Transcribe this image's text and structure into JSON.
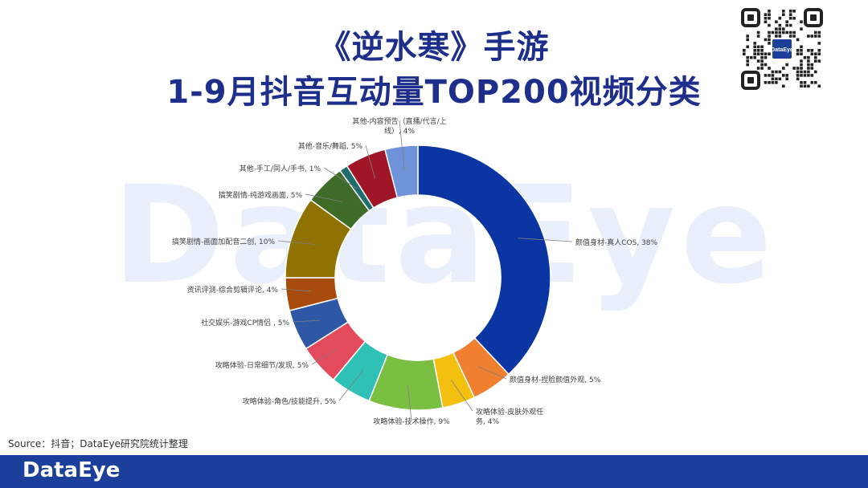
{
  "header": {
    "title_line1": "《逆水寒》手游",
    "title_line2": "1-9月抖音互动量TOP200视频分类"
  },
  "qr_code": {
    "label": "DataEye"
  },
  "watermark": "DataEye",
  "source": "Source：抖音；DataEye研究院统计整理",
  "footer": {
    "logo": "DataEye",
    "bar_color": "#1b3f9b"
  },
  "chart_data": {
    "type": "pie",
    "variant": "donut",
    "slices": [
      {
        "category": "颜值身材-真人COS",
        "value": 38,
        "label": "颜值身材-真人COS, 38%",
        "color": "#0a35a3"
      },
      {
        "category": "颜值身材-捏脸颜值外观",
        "value": 5,
        "label": "颜值身材-捏脸颜值外观, 5%",
        "color": "#f07f2f"
      },
      {
        "category": "攻略体验-皮肤外观任务",
        "value": 4,
        "label": "攻略体验-皮肤外观任|务, 4%",
        "color": "#f3c00f"
      },
      {
        "category": "攻略体验-技术操作",
        "value": 9,
        "label": "攻略体验-技术操作, 9%",
        "color": "#7bbf42"
      },
      {
        "category": "攻略体验-角色/技能提升",
        "value": 5,
        "label": "攻略体验-角色/技能提升, 5%",
        "color": "#2fc1b5"
      },
      {
        "category": "攻略体验-日常细节/发现",
        "value": 5,
        "label": "攻略体验-日常细节/发现, 5%",
        "color": "#e34b5d"
      },
      {
        "category": "社交娱乐-游戏CP情侣",
        "value": 5,
        "label": "社交娱乐-游戏CP情侣    , 5%",
        "color": "#2e57a6"
      },
      {
        "category": "资讯评测-综合剪辑评论",
        "value": 4,
        "label": "资讯评测-综合剪辑评论, 4%",
        "color": "#a84c0e"
      },
      {
        "category": "搞笑剧情-画面加配音二创",
        "value": 10,
        "label": "搞笑剧情-画面加配音二创, 10%",
        "color": "#8f7200"
      },
      {
        "category": "搞笑剧情-纯游戏画面",
        "value": 5,
        "label": "搞笑剧情-纯游戏画面, 5%",
        "color": "#3e6b27"
      },
      {
        "category": "其他-手工/同人/手书",
        "value": 1,
        "label": "其他-手工/同人/手书, 1%",
        "color": "#1e6c6c"
      },
      {
        "category": "其他-音乐/舞蹈",
        "value": 5,
        "label": "其他-音乐/舞蹈, 5%",
        "color": "#a01628"
      },
      {
        "category": "其他-内容预告（直播/代言/上线）",
        "value": 4,
        "label": "其他-内容预告（直播/代言/上|线）, 4%",
        "color": "#6f93d8"
      }
    ]
  }
}
